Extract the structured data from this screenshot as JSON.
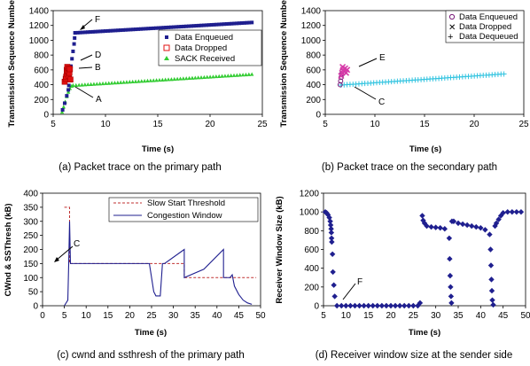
{
  "colors": {
    "enqueued": "#1f1f8f",
    "dropped": "#e01010",
    "sack": "#33cc33",
    "dequeued": "#33c4e0",
    "marker_magenta": "#d63aa8",
    "ssthresh": "#c03030",
    "cwnd": "#1f1f8f",
    "rwnd": "#1f1f8f"
  },
  "chart_data": [
    {
      "id": "a",
      "type": "scatter",
      "caption": "(a) Packet trace on the primary path",
      "xlabel": "Time (s)",
      "ylabel": "Transmission Sequence Number",
      "xlim": [
        5,
        25
      ],
      "ylim": [
        0,
        1400
      ],
      "xticks": [
        5,
        10,
        15,
        20,
        25
      ],
      "yticks": [
        0,
        200,
        400,
        600,
        800,
        1000,
        1200,
        1400
      ],
      "legend_position": "right",
      "series": [
        {
          "name": "Data Enqueued",
          "marker": "square",
          "points": [
            [
              5.9,
              60
            ],
            [
              6.1,
              150
            ],
            [
              6.3,
              250
            ],
            [
              6.45,
              330
            ],
            [
              6.5,
              390
            ],
            [
              6.55,
              470
            ],
            [
              6.6,
              560
            ],
            [
              6.7,
              650
            ],
            [
              6.8,
              750
            ],
            [
              6.9,
              850
            ],
            [
              7.0,
              950
            ],
            [
              7.05,
              1030
            ],
            [
              7.1,
              1100
            ]
          ],
          "trend": [
            [
              7.1,
              1100
            ],
            [
              24,
              1240
            ]
          ]
        },
        {
          "name": "Data Dropped",
          "marker": "hollow-square",
          "points": [
            [
              6.1,
              440
            ],
            [
              6.2,
              480
            ],
            [
              6.25,
              510
            ],
            [
              6.3,
              550
            ],
            [
              6.3,
              600
            ],
            [
              6.35,
              640
            ],
            [
              6.4,
              580
            ],
            [
              6.5,
              620
            ],
            [
              6.5,
              520
            ],
            [
              6.55,
              560
            ],
            [
              6.6,
              610
            ],
            [
              6.65,
              470
            ]
          ]
        },
        {
          "name": "SACK Received",
          "marker": "triangle",
          "points": [
            [
              5.85,
              30
            ],
            [
              6.0,
              100
            ],
            [
              6.15,
              170
            ],
            [
              6.3,
              240
            ],
            [
              6.45,
              300
            ],
            [
              6.6,
              350
            ],
            [
              6.75,
              380
            ],
            [
              6.9,
              390
            ]
          ],
          "trend": [
            [
              6.9,
              390
            ],
            [
              24,
              540
            ]
          ]
        }
      ],
      "annotations": [
        "F",
        "D",
        "B",
        "A"
      ]
    },
    {
      "id": "b",
      "type": "scatter",
      "caption": "(b) Packet trace on the secondary path",
      "xlabel": "Time (s)",
      "ylabel": "Transmission Sequence Number",
      "xlim": [
        5,
        25
      ],
      "ylim": [
        0,
        1400
      ],
      "xticks": [
        5,
        10,
        15,
        20,
        25
      ],
      "yticks": [
        0,
        200,
        400,
        600,
        800,
        1000,
        1200,
        1400
      ],
      "legend_position": "top-right",
      "series": [
        {
          "name": "Data Enqueued",
          "marker": "circle",
          "points": [
            [
              6.5,
              400
            ],
            [
              6.55,
              450
            ],
            [
              6.6,
              500
            ],
            [
              6.65,
              540
            ],
            [
              6.7,
              580
            ]
          ]
        },
        {
          "name": "Data Dropped",
          "marker": "x",
          "points": [
            [
              6.6,
              520
            ],
            [
              6.7,
              560
            ],
            [
              6.8,
              600
            ],
            [
              6.9,
              580
            ],
            [
              7.0,
              620
            ],
            [
              7.1,
              560
            ],
            [
              6.75,
              640
            ],
            [
              7.2,
              600
            ]
          ]
        },
        {
          "name": "Data Dequeued",
          "marker": "plus",
          "trend": [
            [
              6.6,
              395
            ],
            [
              23,
              545
            ]
          ]
        }
      ],
      "annotations": [
        "E",
        "C"
      ]
    },
    {
      "id": "c",
      "type": "line",
      "caption": "(c) cwnd and ssthresh of the primary path",
      "xlabel": "Time (s)",
      "ylabel": "CWnd & SSThresh (kB)",
      "xlim": [
        0,
        50
      ],
      "ylim": [
        0,
        400
      ],
      "xticks": [
        0,
        5,
        10,
        15,
        20,
        25,
        30,
        35,
        40,
        45,
        50
      ],
      "yticks": [
        0,
        50,
        100,
        150,
        200,
        250,
        300,
        350,
        400
      ],
      "legend_position": "top-right",
      "series": [
        {
          "name": "Slow Start Threshold",
          "style": "dashed",
          "points": [
            [
              5,
              350
            ],
            [
              6.2,
              350
            ],
            [
              6.2,
              150
            ],
            [
              24.5,
              150
            ],
            [
              24.5,
              150
            ],
            [
              32.5,
              150
            ],
            [
              32.5,
              100
            ],
            [
              49,
              100
            ]
          ]
        },
        {
          "name": "Congestion Window",
          "style": "solid",
          "points": [
            [
              5,
              0
            ],
            [
              5.8,
              20
            ],
            [
              6.0,
              150
            ],
            [
              6.2,
              300
            ],
            [
              6.4,
              150
            ],
            [
              24.5,
              150
            ],
            [
              25.5,
              50
            ],
            [
              26,
              35
            ],
            [
              27,
              35
            ],
            [
              27.5,
              150
            ],
            [
              28,
              150
            ],
            [
              32.5,
              200
            ],
            [
              32.5,
              100
            ],
            [
              37,
              130
            ],
            [
              41.5,
              200
            ],
            [
              41.5,
              100
            ],
            [
              43,
              100
            ],
            [
              43.5,
              110
            ],
            [
              44,
              70
            ],
            [
              45,
              40
            ],
            [
              46,
              20
            ],
            [
              47,
              10
            ],
            [
              48,
              5
            ]
          ]
        }
      ],
      "annotations": [
        "C"
      ]
    },
    {
      "id": "d",
      "type": "scatter",
      "caption": "(d) Receiver window size at the sender side",
      "xlabel": "Time (s)",
      "ylabel": "Receiver Window Size (kB)",
      "xlim": [
        5,
        50
      ],
      "ylim": [
        0,
        1200
      ],
      "xticks": [
        5,
        10,
        15,
        20,
        25,
        30,
        35,
        40,
        45,
        50
      ],
      "yticks": [
        0,
        200,
        400,
        600,
        800,
        1000,
        1200
      ],
      "series": [
        {
          "name": "Receiver Window",
          "marker": "diamond",
          "points": [
            [
              5.4,
              1000
            ],
            [
              5.7,
              990
            ],
            [
              6.0,
              970
            ],
            [
              6.3,
              940
            ],
            [
              6.5,
              900
            ],
            [
              6.6,
              860
            ],
            [
              6.7,
              820
            ],
            [
              6.75,
              780
            ],
            [
              6.8,
              720
            ],
            [
              6.85,
              680
            ],
            [
              7.0,
              550
            ],
            [
              7.1,
              360
            ],
            [
              7.3,
              220
            ],
            [
              7.5,
              100
            ],
            [
              8,
              0
            ],
            [
              9,
              0
            ],
            [
              10,
              0
            ],
            [
              11,
              0
            ],
            [
              12,
              0
            ],
            [
              13,
              0
            ],
            [
              14,
              0
            ],
            [
              15,
              0
            ],
            [
              16,
              0
            ],
            [
              17,
              0
            ],
            [
              18,
              0
            ],
            [
              19,
              0
            ],
            [
              20,
              0
            ],
            [
              21,
              0
            ],
            [
              22,
              0
            ],
            [
              23,
              0
            ],
            [
              24,
              0
            ],
            [
              25,
              0
            ],
            [
              26,
              0
            ],
            [
              26.5,
              30
            ],
            [
              27,
              960
            ],
            [
              27.2,
              910
            ],
            [
              27.5,
              880
            ],
            [
              28,
              850
            ],
            [
              29,
              840
            ],
            [
              30,
              835
            ],
            [
              31,
              830
            ],
            [
              32,
              820
            ],
            [
              33,
              720
            ],
            [
              33.1,
              500
            ],
            [
              33.2,
              320
            ],
            [
              33.3,
              200
            ],
            [
              33.4,
              100
            ],
            [
              33.5,
              30
            ],
            [
              33.6,
              900
            ],
            [
              34,
              900
            ],
            [
              35,
              880
            ],
            [
              36,
              870
            ],
            [
              37,
              860
            ],
            [
              38,
              850
            ],
            [
              39,
              840
            ],
            [
              40,
              830
            ],
            [
              41,
              810
            ],
            [
              42,
              760
            ],
            [
              42.2,
              600
            ],
            [
              42.3,
              430
            ],
            [
              42.4,
              280
            ],
            [
              42.5,
              160
            ],
            [
              42.6,
              60
            ],
            [
              42.8,
              10
            ],
            [
              43.2,
              850
            ],
            [
              43.5,
              880
            ],
            [
              44,
              920
            ],
            [
              44.5,
              960
            ],
            [
              45,
              990
            ],
            [
              46,
              1000
            ],
            [
              47,
              1000
            ],
            [
              48,
              1000
            ],
            [
              49,
              1000
            ]
          ]
        }
      ],
      "annotations": [
        "F"
      ]
    }
  ]
}
